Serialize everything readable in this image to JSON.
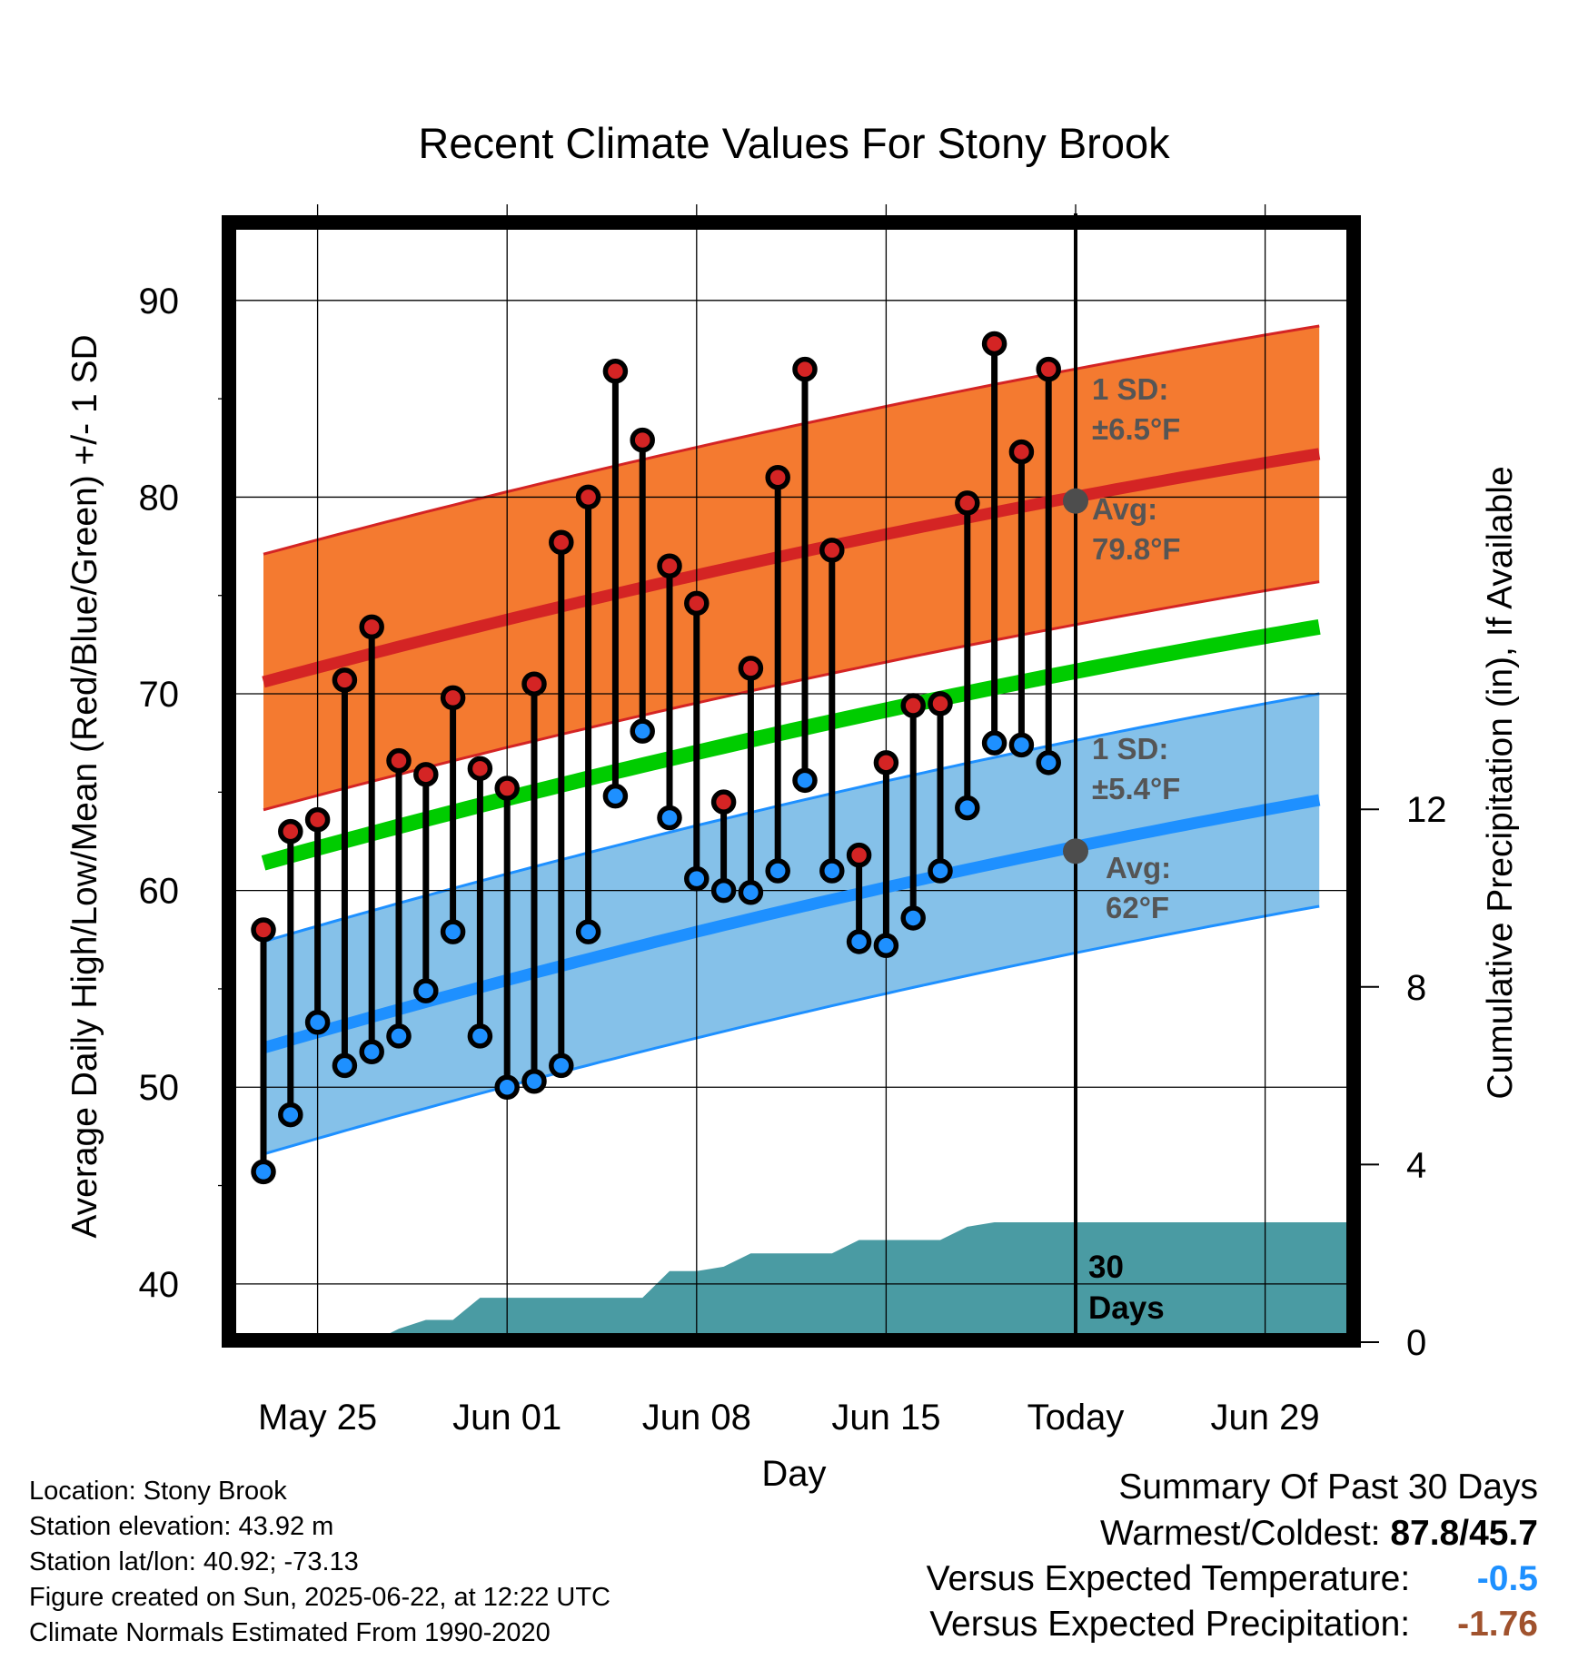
{
  "chart_data": {
    "type": "line",
    "title": "Recent Climate Values For Stony Brook",
    "xlabel": "Day",
    "ylabel": "Average Daily High/Low/Mean (Red/Blue/Green) +/- 1 SD",
    "y2label": "Cumulative Precipitation (in), If Available",
    "ylim": [
      37.5,
      93.5
    ],
    "y2lim": [
      0,
      30
    ],
    "y_ticks": [
      "40",
      "50",
      "60",
      "70",
      "80",
      "90"
    ],
    "y2_ticks": [
      "0",
      "4",
      "8",
      "12"
    ],
    "x_ticks": [
      "May 25",
      "Jun 01",
      "Jun 08",
      "Jun 15",
      "Today",
      "Jun 29"
    ],
    "days": [
      -30,
      -29,
      -28,
      -27,
      -26,
      -25,
      -24,
      -23,
      -22,
      -21,
      -20,
      -19,
      -18,
      -17,
      -16,
      -15,
      -14,
      -13,
      -12,
      -11,
      -10,
      -9,
      -8,
      -7,
      -6,
      -5,
      -4,
      -3,
      -2,
      -1
    ],
    "highs": [
      58.0,
      63.0,
      63.6,
      70.7,
      73.4,
      66.6,
      65.9,
      69.8,
      66.2,
      65.2,
      70.5,
      77.7,
      80.0,
      86.4,
      82.9,
      76.5,
      74.6,
      64.5,
      71.3,
      81.0,
      86.5,
      77.3,
      61.8,
      66.5,
      69.4,
      69.5,
      79.7,
      87.8,
      82.3,
      86.5
    ],
    "lows": [
      45.7,
      48.6,
      53.3,
      51.1,
      51.8,
      52.6,
      54.9,
      57.9,
      52.6,
      50.0,
      50.3,
      51.1,
      57.9,
      64.8,
      68.1,
      63.7,
      60.6,
      60.0,
      59.9,
      61.0,
      65.6,
      61.0,
      57.4,
      57.2,
      58.6,
      61.0,
      64.2,
      67.5,
      67.4,
      66.5
    ],
    "normal_high": {
      "start": 70.6,
      "end": 82.2,
      "today": "79.8"
    },
    "normal_low": {
      "start": 52.0,
      "end": 64.6,
      "today": "62"
    },
    "normal_mean": {
      "start": 61.4,
      "end": 73.4
    },
    "sd_high": "6.5",
    "sd_low": "5.4",
    "precip_cumulative": [
      0,
      0,
      0,
      0,
      0,
      0.3,
      0.5,
      0.5,
      1.0,
      1.0,
      1.0,
      1.0,
      1.0,
      1.0,
      1.0,
      1.6,
      1.6,
      1.7,
      2.0,
      2.0,
      2.0,
      2.0,
      2.3,
      2.3,
      2.3,
      2.3,
      2.6,
      2.7,
      2.7,
      2.7,
      2.7
    ],
    "colors": {
      "high_band": "#F47A30",
      "high_line": "#D42424",
      "low_band": "#85C1E9",
      "low_line": "#1E90FF",
      "mean_line": "#00CC00",
      "precip": "#4A9BA3",
      "high_dot": "#D42424",
      "low_dot": "#1E90FF",
      "annot": "#555555"
    },
    "annotations": {
      "high_sd_label": "1 SD:",
      "high_sd_value": "±6.5°F",
      "high_avg_label": "Avg:",
      "high_avg_value": "79.8°F",
      "low_sd_label": "1 SD:",
      "low_sd_value": "±5.4°F",
      "low_avg_label": "Avg:",
      "low_avg_value": "62°F",
      "days_line1": "30",
      "days_line2": "Days"
    }
  },
  "station": {
    "location": "Location: Stony Brook",
    "elevation": "Station elevation: 43.92 m",
    "latlon": "Station lat/lon: 40.92; -73.13",
    "created": "Figure created on Sun, 2025-06-22, at 12:22 UTC",
    "normals": "Climate Normals Estimated From 1990-2020"
  },
  "summary": {
    "title": "Summary Of Past 30 Days",
    "warm_cold_label": "Warmest/Coldest:",
    "warm_cold_value": "87.8/45.7",
    "temp_label": "Versus Expected Temperature:",
    "temp_value": "-0.5",
    "temp_color": "#1E90FF",
    "precip_label": "Versus Expected Precipitation:",
    "precip_value": "-1.76",
    "precip_color": "#A0522D"
  }
}
